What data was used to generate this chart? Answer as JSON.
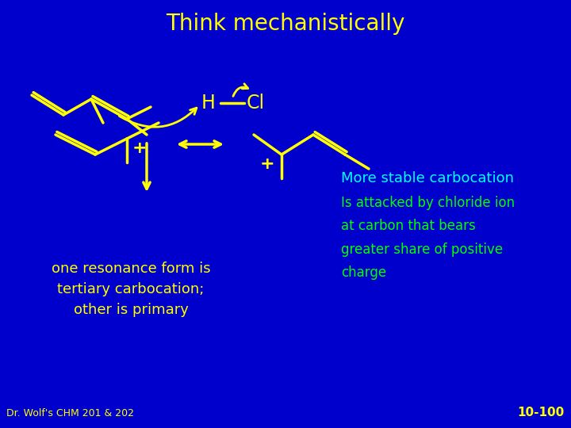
{
  "bg_color": "#0000CC",
  "title": "Think mechanistically",
  "title_color": "#FFFF00",
  "title_fontsize": 20,
  "text_cyan": "#00FFFF",
  "text_green": "#00FF00",
  "text_yellow": "#FFFF00",
  "footer_left": "Dr. Wolf's CHM 201 & 202",
  "footer_right": "10-100",
  "more_stable_text": "More stable carbocation",
  "attacked_text": "Is attacked by chloride ion\nat carbon that bears\ngreater share of positive\ncharge",
  "bottom_left_text": "one resonance form is\ntertiary carbocation;\nother is primary"
}
